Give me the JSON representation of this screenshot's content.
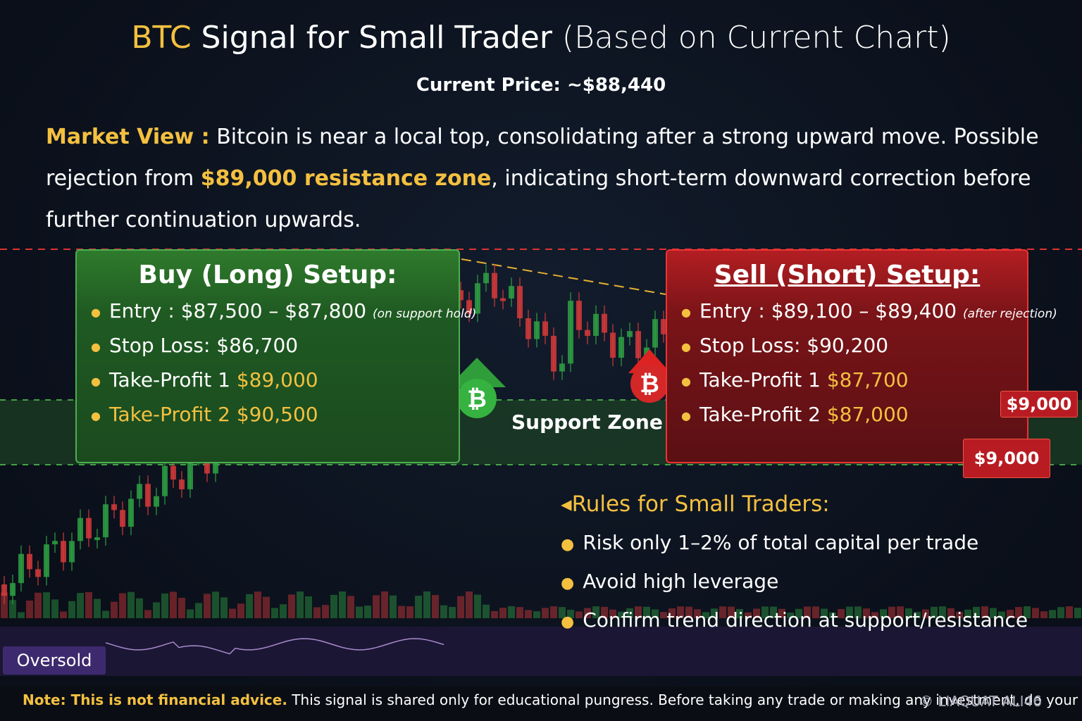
{
  "header": {
    "title_highlight": "BTC",
    "title": "Signal for Small Trader",
    "title_note": "(Based on Current Chart)",
    "current_price": "Current Price: ~$88,440"
  },
  "market_view": {
    "label": "Market View :",
    "text_before": "Bitcoin is near a local top, consolidating after a strong upward move. Possible rejection from",
    "highlight": "$89,000 resistance zone",
    "text_after": ", indicating short-term downward correction before further continuation upwards."
  },
  "buy_setup": {
    "title": "Buy (Long) Setup:",
    "items": [
      {
        "label": "Entry :",
        "value": "$87,500 – $87,800",
        "note": "(on support hold)"
      },
      {
        "label": "Stop Loss:",
        "value": "$86,700"
      },
      {
        "label": "Take-Profit 1",
        "value": "$89,000"
      },
      {
        "label": "Take-Profit 2",
        "value": "$90,500"
      }
    ]
  },
  "sell_setup": {
    "title": "Sell (Short) Setup:",
    "items": [
      {
        "label": "Entry :",
        "value": "$89,100 – $89,400",
        "note": "(after rejection)"
      },
      {
        "label": "Stop Loss:",
        "value": "$90,200"
      },
      {
        "label": "Take-Profit 1",
        "value": "$87,700"
      },
      {
        "label": "Take-Profit 2",
        "value": "$87,000"
      }
    ]
  },
  "chart_labels": {
    "support_zone": "Support Zone",
    "price_tag_1": "$9,000",
    "price_tag_2": "$9,000",
    "oversold": "Oversold"
  },
  "rules": {
    "title": "Rules for Small Traders:",
    "items": [
      "Risk only 1–2% of total capital per trade",
      "Avoid high leverage",
      "Confirm trend direction at support/resistance"
    ]
  },
  "footer": {
    "note_label": "Note: This is not financial advice.",
    "note_text": "This signal is shared only for educational pungress. Before taking any trade or making any investment, do your",
    "watermark": "© LIAQUAT ALI46"
  }
}
